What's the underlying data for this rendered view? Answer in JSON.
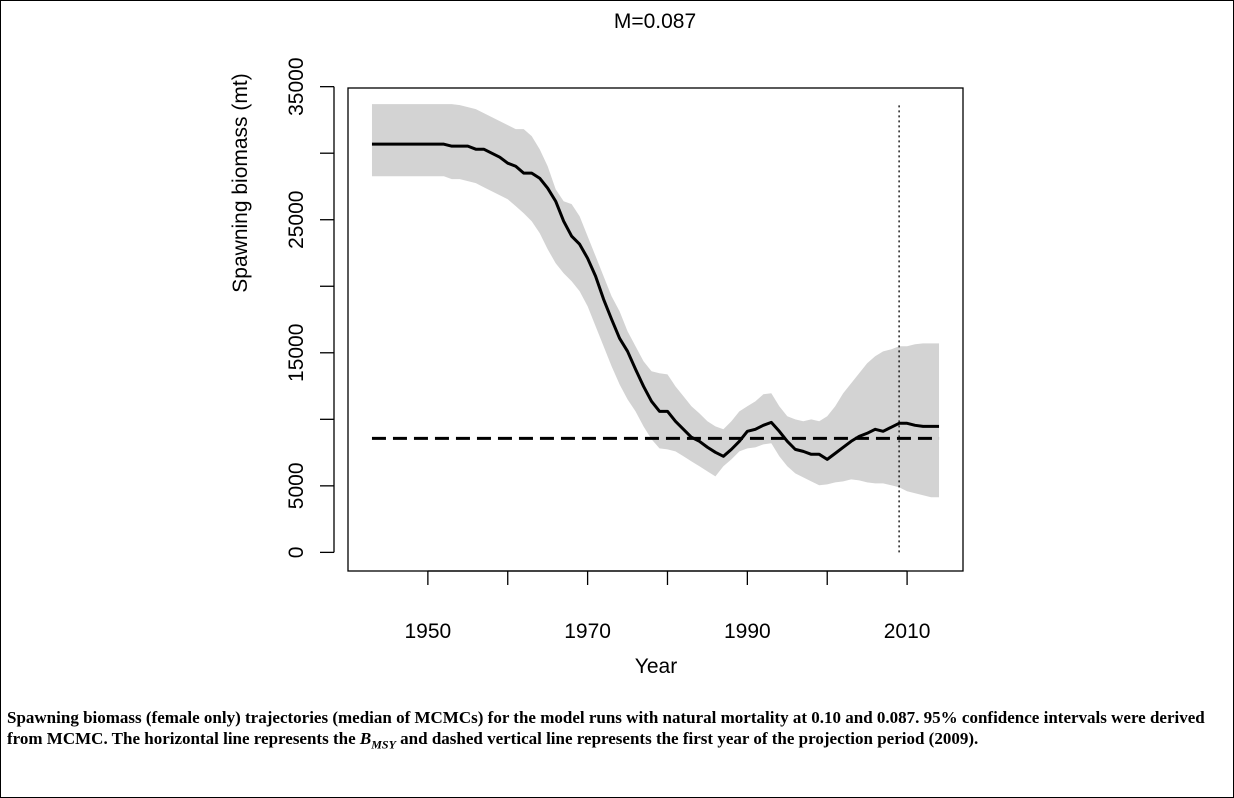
{
  "chart_data": {
    "type": "line",
    "title": "M=0.087",
    "x_label": "Year",
    "y_label": "Spawning biomass (mt)",
    "x": [
      1943,
      1944,
      1945,
      1946,
      1947,
      1948,
      1949,
      1950,
      1951,
      1952,
      1953,
      1954,
      1955,
      1956,
      1957,
      1958,
      1959,
      1960,
      1961,
      1962,
      1963,
      1964,
      1965,
      1966,
      1967,
      1968,
      1969,
      1970,
      1971,
      1972,
      1973,
      1974,
      1975,
      1976,
      1977,
      1978,
      1979,
      1980,
      1981,
      1982,
      1983,
      1984,
      1985,
      1986,
      1987,
      1988,
      1989,
      1990,
      1991,
      1992,
      1993,
      1994,
      1995,
      1996,
      1997,
      1998,
      1999,
      2000,
      2001,
      2002,
      2003,
      2004,
      2005,
      2006,
      2007,
      2008,
      2009,
      2010,
      2011,
      2012,
      2013,
      2014
    ],
    "median": {
      "color": "#000000",
      "values": [
        30680,
        30680,
        30680,
        30680,
        30680,
        30680,
        30680,
        30680,
        30680,
        30680,
        30530,
        30530,
        30530,
        30300,
        30300,
        30000,
        29700,
        29250,
        29020,
        28500,
        28500,
        28120,
        27370,
        26390,
        24890,
        23760,
        23160,
        22100,
        20750,
        19020,
        17520,
        16090,
        15110,
        13760,
        12480,
        11350,
        10600,
        10600,
        9850,
        9250,
        8650,
        8350,
        7900,
        7520,
        7220,
        7740,
        8350,
        9100,
        9250,
        9550,
        9770,
        9100,
        8350,
        7740,
        7590,
        7370,
        7370,
        6990,
        7440,
        7900,
        8350,
        8720,
        8950,
        9250,
        9100,
        9400,
        9700,
        9700,
        9550,
        9470,
        9470,
        9470
      ]
    },
    "interval": {
      "color": "#d3d3d3",
      "upper": [
        33690,
        33690,
        33690,
        33690,
        33690,
        33690,
        33690,
        33690,
        33690,
        33690,
        33690,
        33610,
        33460,
        33310,
        33010,
        32710,
        32410,
        32110,
        31810,
        31810,
        31280,
        30300,
        29020,
        27290,
        26390,
        26170,
        25260,
        23760,
        22260,
        20750,
        19250,
        18120,
        16620,
        15490,
        14360,
        13610,
        13460,
        13380,
        12480,
        11730,
        10980,
        10450,
        9850,
        9470,
        9250,
        9850,
        10600,
        10980,
        11350,
        11880,
        11960,
        10980,
        10230,
        10000,
        9850,
        10000,
        9850,
        10230,
        10980,
        11960,
        12710,
        13460,
        14210,
        14740,
        15110,
        15260,
        15490,
        15490,
        15640,
        15710,
        15710,
        15710
      ],
      "lower": [
        28270,
        28270,
        28270,
        28270,
        28270,
        28270,
        28270,
        28270,
        28270,
        28270,
        28050,
        28050,
        27900,
        27750,
        27440,
        27140,
        26840,
        26540,
        26020,
        25490,
        24890,
        23990,
        22780,
        21730,
        20980,
        20380,
        19620,
        18500,
        16990,
        15490,
        13990,
        12630,
        11500,
        10600,
        9470,
        8500,
        7820,
        7740,
        7590,
        7220,
        6840,
        6470,
        6090,
        5710,
        6470,
        6990,
        7590,
        7820,
        7890,
        8120,
        8200,
        7220,
        6470,
        5940,
        5640,
        5340,
        5040,
        5110,
        5260,
        5340,
        5490,
        5410,
        5260,
        5190,
        5190,
        5040,
        4890,
        4590,
        4440,
        4290,
        4140,
        4140
      ]
    },
    "bmsy": 8570,
    "projection_start": 2009,
    "xlim": [
      1940,
      2017
    ],
    "ylim": [
      -1400,
      34900
    ],
    "xticks": [
      1950,
      {
        "value": 1960,
        "label": null
      },
      1970,
      {
        "value": 1980,
        "label": null
      },
      1990,
      {
        "value": 2000,
        "label": null
      },
      2010
    ],
    "yticks": [
      0,
      5000,
      {
        "value": 10000,
        "label": null
      },
      15000,
      {
        "value": 20000,
        "label": null
      },
      25000,
      {
        "value": 30000,
        "label": null
      },
      35000
    ]
  },
  "caption": {
    "before": "Spawning biomass (female only) trajectories (median of MCMCs) for the model runs with natural mortality at 0.10 and 0.087. 95% confidence intervals were derived from MCMC. The horizontal line represents the ",
    "symbol": "B",
    "subscript": "MSY",
    "after": " and dashed vertical line represents the first year of the projection period (2009)."
  }
}
